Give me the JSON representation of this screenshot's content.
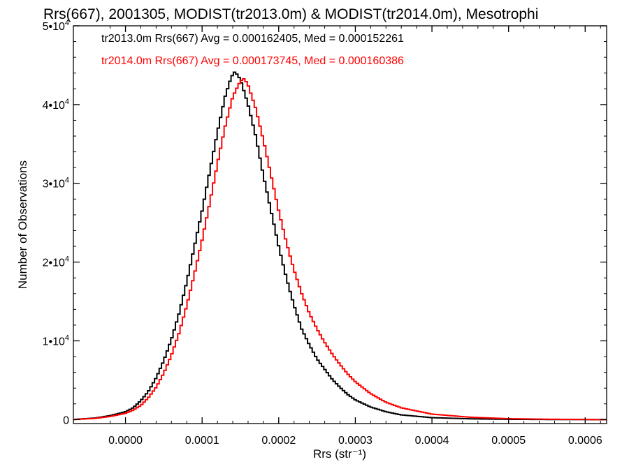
{
  "chart_data": {
    "type": "line",
    "style": "step histogram",
    "title": "Rrs(667), 2001305, MODIST(tr2013.0m) & MODIST(tr2014.0m), Mesotrophi",
    "xlabel": "Rrs (str⁻¹)",
    "ylabel": "Number of Observations",
    "xlim": [
      -6.8e-05,
      0.000628
    ],
    "ylim": [
      -500,
      50000
    ],
    "x_ticks": [
      0.0,
      0.0001,
      0.0002,
      0.0003,
      0.0004,
      0.0005,
      0.0006
    ],
    "x_tick_labels": [
      "0.0000",
      "0.0001",
      "0.0002",
      "0.0003",
      "0.0004",
      "0.0005",
      "0.0006"
    ],
    "y_ticks": [
      0,
      10000,
      20000,
      30000,
      40000,
      50000
    ],
    "y_tick_labels": [
      {
        "mantissa": "0",
        "exponent": ""
      },
      {
        "mantissa": "1•10",
        "exponent": "4"
      },
      {
        "mantissa": "2•10",
        "exponent": "4"
      },
      {
        "mantissa": "3•10",
        "exponent": "4"
      },
      {
        "mantissa": "4•10",
        "exponent": "4"
      },
      {
        "mantissa": "5•10",
        "exponent": "4"
      }
    ],
    "grid": false,
    "legend_position": "top-left",
    "series": [
      {
        "name": "tr2013.0m",
        "color": "#000000",
        "legend_text": "tr2013.0m Rrs(667) Avg = 0.000162405, Med = 0.000152261",
        "points": [
          [
            -7e-05,
            0
          ],
          [
            -4e-05,
            200
          ],
          [
            -2e-05,
            500
          ],
          [
            0.0,
            1000
          ],
          [
            1e-05,
            1500
          ],
          [
            2e-05,
            2400
          ],
          [
            3e-05,
            3600
          ],
          [
            4e-05,
            5300
          ],
          [
            5e-05,
            7500
          ],
          [
            6e-05,
            10200
          ],
          [
            7e-05,
            13500
          ],
          [
            8e-05,
            17500
          ],
          [
            9e-05,
            22000
          ],
          [
            0.0001,
            26500
          ],
          [
            0.00011,
            31500
          ],
          [
            0.00012,
            36500
          ],
          [
            0.00013,
            41000
          ],
          [
            0.000138,
            43500
          ],
          [
            0.000143,
            44200
          ],
          [
            0.00015,
            43200
          ],
          [
            0.00016,
            40000
          ],
          [
            0.00017,
            36000
          ],
          [
            0.00018,
            31000
          ],
          [
            0.00019,
            26500
          ],
          [
            0.0002,
            22000
          ],
          [
            0.00021,
            18000
          ],
          [
            0.00022,
            14500
          ],
          [
            0.00023,
            11500
          ],
          [
            0.00024,
            9500
          ],
          [
            0.00025,
            7700
          ],
          [
            0.00026,
            6400
          ],
          [
            0.00027,
            5100
          ],
          [
            0.00028,
            4100
          ],
          [
            0.00029,
            3200
          ],
          [
            0.0003,
            2500
          ],
          [
            0.00032,
            1600
          ],
          [
            0.00034,
            1000
          ],
          [
            0.00036,
            600
          ],
          [
            0.0004,
            250
          ],
          [
            0.00045,
            100
          ],
          [
            0.0005,
            40
          ],
          [
            0.00055,
            15
          ],
          [
            0.0006,
            5
          ],
          [
            0.00063,
            0
          ]
        ]
      },
      {
        "name": "tr2014.0m",
        "color": "#ff0000",
        "legend_text": "tr2014.0m Rrs(667) Avg = 0.000173745, Med = 0.000160386",
        "points": [
          [
            -7e-05,
            0
          ],
          [
            -4e-05,
            150
          ],
          [
            -2e-05,
            400
          ],
          [
            0.0,
            800
          ],
          [
            1e-05,
            1200
          ],
          [
            2e-05,
            1800
          ],
          [
            3e-05,
            2800
          ],
          [
            4e-05,
            4100
          ],
          [
            5e-05,
            5900
          ],
          [
            6e-05,
            8200
          ],
          [
            7e-05,
            11000
          ],
          [
            8e-05,
            14500
          ],
          [
            9e-05,
            18500
          ],
          [
            0.0001,
            22800
          ],
          [
            0.00011,
            27500
          ],
          [
            0.00012,
            32500
          ],
          [
            0.00013,
            37200
          ],
          [
            0.00014,
            41000
          ],
          [
            0.00015,
            43000
          ],
          [
            0.000155,
            43300
          ],
          [
            0.00016,
            42500
          ],
          [
            0.00017,
            39500
          ],
          [
            0.00018,
            35500
          ],
          [
            0.00019,
            31000
          ],
          [
            0.0002,
            26500
          ],
          [
            0.00021,
            22500
          ],
          [
            0.00022,
            19000
          ],
          [
            0.00023,
            16000
          ],
          [
            0.00024,
            13500
          ],
          [
            0.00025,
            11500
          ],
          [
            0.00026,
            9800
          ],
          [
            0.00027,
            8300
          ],
          [
            0.00028,
            7000
          ],
          [
            0.00029,
            5800
          ],
          [
            0.0003,
            4800
          ],
          [
            0.00032,
            3300
          ],
          [
            0.00034,
            2200
          ],
          [
            0.00036,
            1500
          ],
          [
            0.0004,
            700
          ],
          [
            0.00045,
            300
          ],
          [
            0.0005,
            120
          ],
          [
            0.00055,
            50
          ],
          [
            0.0006,
            15
          ],
          [
            0.00063,
            0
          ]
        ]
      }
    ]
  }
}
